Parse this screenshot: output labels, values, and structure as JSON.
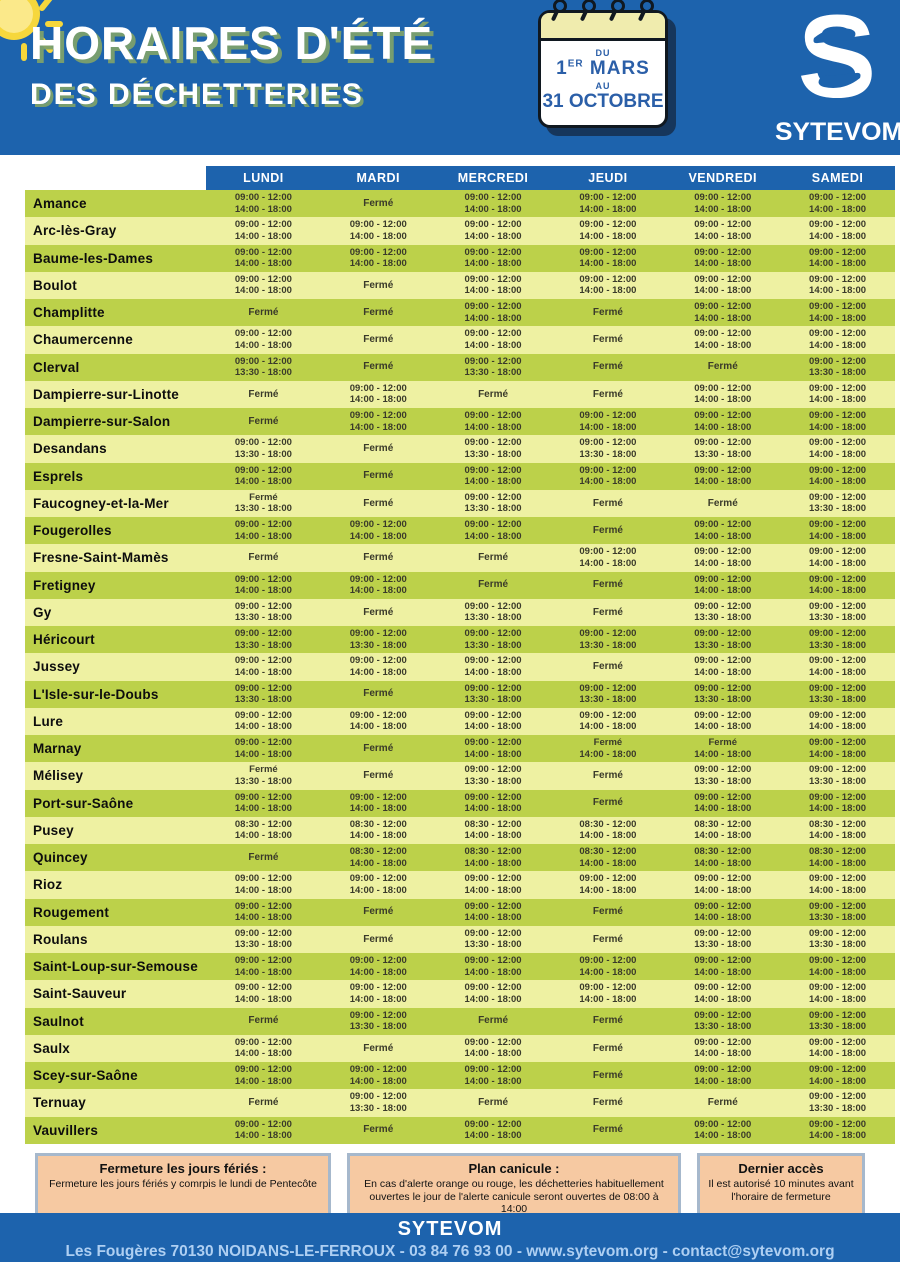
{
  "theme": {
    "blue": "#1d63ad",
    "navy_shadow": "#16365c",
    "row_dark_green": "#bcd14a",
    "row_light_yellow": "#eef1a2",
    "title_shadow_olive": "#7ca06c",
    "calendar_yellow": "#f0ecae",
    "info_box_peach": "#f6c9a2",
    "info_box_border": "#a6b8cc",
    "footer_address_blue": "#aecff2"
  },
  "header": {
    "title_line1": "HORAIRES D'ÉTÉ",
    "title_line2": "DES DÉCHETTERIES",
    "calendar": {
      "du": "DU",
      "day": "1",
      "day_suffix": "ER",
      "month": "MARS",
      "au": "AU",
      "date2": "31 OCTOBRE"
    },
    "logo": {
      "letter": "S",
      "name": "SYTEVOM"
    }
  },
  "table": {
    "day_headers": [
      "LUNDI",
      "MARDI",
      "MERCREDI",
      "JEUDI",
      "VENDREDI",
      "SAMEDI"
    ],
    "closed_label": "Fermé",
    "rows": [
      {
        "name": "Amance",
        "days": [
          [
            "09:00 - 12:00",
            "14:00 - 18:00"
          ],
          [
            "Fermé"
          ],
          [
            "09:00 - 12:00",
            "14:00 - 18:00"
          ],
          [
            "09:00 - 12:00",
            "14:00 - 18:00"
          ],
          [
            "09:00 - 12:00",
            "14:00 - 18:00"
          ],
          [
            "09:00 - 12:00",
            "14:00 - 18:00"
          ]
        ]
      },
      {
        "name": "Arc-lès-Gray",
        "days": [
          [
            "09:00 - 12:00",
            "14:00 - 18:00"
          ],
          [
            "09:00 - 12:00",
            "14:00 - 18:00"
          ],
          [
            "09:00 - 12:00",
            "14:00 - 18:00"
          ],
          [
            "09:00 - 12:00",
            "14:00 - 18:00"
          ],
          [
            "09:00 - 12:00",
            "14:00 - 18:00"
          ],
          [
            "09:00 - 12:00",
            "14:00 - 18:00"
          ]
        ]
      },
      {
        "name": "Baume-les-Dames",
        "days": [
          [
            "09:00 - 12:00",
            "14:00 - 18:00"
          ],
          [
            "09:00 - 12:00",
            "14:00 - 18:00"
          ],
          [
            "09:00 - 12:00",
            "14:00 - 18:00"
          ],
          [
            "09:00 - 12:00",
            "14:00 - 18:00"
          ],
          [
            "09:00 - 12:00",
            "14:00 - 18:00"
          ],
          [
            "09:00 - 12:00",
            "14:00 - 18:00"
          ]
        ]
      },
      {
        "name": "Boulot",
        "days": [
          [
            "09:00 - 12:00",
            "14:00 - 18:00"
          ],
          [
            "Fermé"
          ],
          [
            "09:00 - 12:00",
            "14:00 - 18:00"
          ],
          [
            "09:00 - 12:00",
            "14:00 - 18:00"
          ],
          [
            "09:00 - 12:00",
            "14:00 - 18:00"
          ],
          [
            "09:00 - 12:00",
            "14:00 - 18:00"
          ]
        ]
      },
      {
        "name": "Champlitte",
        "days": [
          [
            "Fermé"
          ],
          [
            "Fermé"
          ],
          [
            "09:00 - 12:00",
            "14:00 - 18:00"
          ],
          [
            "Fermé"
          ],
          [
            "09:00 - 12:00",
            "14:00 - 18:00"
          ],
          [
            "09:00 - 12:00",
            "14:00 - 18:00"
          ]
        ]
      },
      {
        "name": "Chaumercenne",
        "days": [
          [
            "09:00 - 12:00",
            "14:00 - 18:00"
          ],
          [
            "Fermé"
          ],
          [
            "09:00 - 12:00",
            "14:00 - 18:00"
          ],
          [
            "Fermé"
          ],
          [
            "09:00 - 12:00",
            "14:00 - 18:00"
          ],
          [
            "09:00 - 12:00",
            "14:00 - 18:00"
          ]
        ]
      },
      {
        "name": "Clerval",
        "days": [
          [
            "09:00 - 12:00",
            "13:30 - 18:00"
          ],
          [
            "Fermé"
          ],
          [
            "09:00 - 12:00",
            "13:30 - 18:00"
          ],
          [
            "Fermé"
          ],
          [
            "Fermé"
          ],
          [
            "09:00 - 12:00",
            "13:30 - 18:00"
          ]
        ]
      },
      {
        "name": "Dampierre-sur-Linotte",
        "days": [
          [
            "Fermé"
          ],
          [
            "09:00 - 12:00",
            "14:00 - 18:00"
          ],
          [
            "Fermé"
          ],
          [
            "Fermé"
          ],
          [
            "09:00 - 12:00",
            "14:00 - 18:00"
          ],
          [
            "09:00 - 12:00",
            "14:00 - 18:00"
          ]
        ]
      },
      {
        "name": "Dampierre-sur-Salon",
        "days": [
          [
            "Fermé"
          ],
          [
            "09:00 - 12:00",
            "14:00 - 18:00"
          ],
          [
            "09:00 - 12:00",
            "14:00 - 18:00"
          ],
          [
            "09:00 - 12:00",
            "14:00 - 18:00"
          ],
          [
            "09:00 - 12:00",
            "14:00 - 18:00"
          ],
          [
            "09:00 - 12:00",
            "14:00 - 18:00"
          ]
        ]
      },
      {
        "name": "Desandans",
        "days": [
          [
            "09:00 - 12:00",
            "13:30 - 18:00"
          ],
          [
            "Fermé"
          ],
          [
            "09:00 - 12:00",
            "13:30 - 18:00"
          ],
          [
            "09:00 - 12:00",
            "13:30 - 18:00"
          ],
          [
            "09:00 - 12:00",
            "13:30 - 18:00"
          ],
          [
            "09:00 - 12:00",
            "14:00 - 18:00"
          ]
        ]
      },
      {
        "name": "Esprels",
        "days": [
          [
            "09:00 - 12:00",
            "14:00 - 18:00"
          ],
          [
            "Fermé"
          ],
          [
            "09:00 - 12:00",
            "14:00 - 18:00"
          ],
          [
            "09:00 - 12:00",
            "14:00 - 18:00"
          ],
          [
            "09:00 - 12:00",
            "14:00 - 18:00"
          ],
          [
            "09:00 - 12:00",
            "14:00 - 18:00"
          ]
        ]
      },
      {
        "name": "Faucogney-et-la-Mer",
        "days": [
          [
            "Fermé",
            "13:30 - 18:00"
          ],
          [
            "Fermé"
          ],
          [
            "09:00 - 12:00",
            "13:30 - 18:00"
          ],
          [
            "Fermé"
          ],
          [
            "Fermé"
          ],
          [
            "09:00 - 12:00",
            "13:30 - 18:00"
          ]
        ]
      },
      {
        "name": "Fougerolles",
        "days": [
          [
            "09:00 - 12:00",
            "14:00 - 18:00"
          ],
          [
            "09:00 - 12:00",
            "14:00 - 18:00"
          ],
          [
            "09:00 - 12:00",
            "14:00 - 18:00"
          ],
          [
            "Fermé"
          ],
          [
            "09:00 - 12:00",
            "14:00 - 18:00"
          ],
          [
            "09:00 - 12:00",
            "14:00 - 18:00"
          ]
        ]
      },
      {
        "name": "Fresne-Saint-Mamès",
        "days": [
          [
            "Fermé"
          ],
          [
            "Fermé"
          ],
          [
            "Fermé"
          ],
          [
            "09:00 - 12:00",
            "14:00 - 18:00"
          ],
          [
            "09:00 - 12:00",
            "14:00 - 18:00"
          ],
          [
            "09:00 - 12:00",
            "14:00 - 18:00"
          ]
        ]
      },
      {
        "name": "Fretigney",
        "days": [
          [
            "09:00 - 12:00",
            "14:00 - 18:00"
          ],
          [
            "09:00 - 12:00",
            "14:00 - 18:00"
          ],
          [
            "Fermé"
          ],
          [
            "Fermé"
          ],
          [
            "09:00 - 12:00",
            "14:00 - 18:00"
          ],
          [
            "09:00 - 12:00",
            "14:00 - 18:00"
          ]
        ]
      },
      {
        "name": "Gy",
        "days": [
          [
            "09:00 - 12:00",
            "13:30 - 18:00"
          ],
          [
            "Fermé"
          ],
          [
            "09:00 - 12:00",
            "13:30 - 18:00"
          ],
          [
            "Fermé"
          ],
          [
            "09:00 - 12:00",
            "13:30 - 18:00"
          ],
          [
            "09:00 - 12:00",
            "13:30 - 18:00"
          ]
        ]
      },
      {
        "name": "Héricourt",
        "days": [
          [
            "09:00 - 12:00",
            "13:30 - 18:00"
          ],
          [
            "09:00 - 12:00",
            "13:30 - 18:00"
          ],
          [
            "09:00 - 12:00",
            "13:30 - 18:00"
          ],
          [
            "09:00 - 12:00",
            "13:30 - 18:00"
          ],
          [
            "09:00 - 12:00",
            "13:30 - 18:00"
          ],
          [
            "09:00 - 12:00",
            "13:30 - 18:00"
          ]
        ]
      },
      {
        "name": "Jussey",
        "days": [
          [
            "09:00 - 12:00",
            "14:00 - 18:00"
          ],
          [
            "09:00 - 12:00",
            "14:00 - 18:00"
          ],
          [
            "09:00 - 12:00",
            "14:00 - 18:00"
          ],
          [
            "Fermé"
          ],
          [
            "09:00 - 12:00",
            "14:00 - 18:00"
          ],
          [
            "09:00 - 12:00",
            "14:00 - 18:00"
          ]
        ]
      },
      {
        "name": "L'Isle-sur-le-Doubs",
        "days": [
          [
            "09:00 - 12:00",
            "13:30 - 18:00"
          ],
          [
            "Fermé"
          ],
          [
            "09:00 - 12:00",
            "13:30 - 18:00"
          ],
          [
            "09:00 - 12:00",
            "13:30 - 18:00"
          ],
          [
            "09:00 - 12:00",
            "13:30 - 18:00"
          ],
          [
            "09:00 - 12:00",
            "13:30 - 18:00"
          ]
        ]
      },
      {
        "name": "Lure",
        "days": [
          [
            "09:00 - 12:00",
            "14:00 - 18:00"
          ],
          [
            "09:00 - 12:00",
            "14:00 - 18:00"
          ],
          [
            "09:00 - 12:00",
            "14:00 - 18:00"
          ],
          [
            "09:00 - 12:00",
            "14:00 - 18:00"
          ],
          [
            "09:00 - 12:00",
            "14:00 - 18:00"
          ],
          [
            "09:00 - 12:00",
            "14:00 - 18:00"
          ]
        ]
      },
      {
        "name": "Marnay",
        "days": [
          [
            "09:00 - 12:00",
            "14:00 - 18:00"
          ],
          [
            "Fermé"
          ],
          [
            "09:00 - 12:00",
            "14:00 - 18:00"
          ],
          [
            "Fermé",
            "14:00 - 18:00"
          ],
          [
            "Fermé",
            "14:00 - 18:00"
          ],
          [
            "09:00 - 12:00",
            "14:00 - 18:00"
          ]
        ]
      },
      {
        "name": "Mélisey",
        "days": [
          [
            "Fermé",
            "13:30 - 18:00"
          ],
          [
            "Fermé"
          ],
          [
            "09:00 - 12:00",
            "13:30 - 18:00"
          ],
          [
            "Fermé"
          ],
          [
            "09:00 - 12:00",
            "13:30 - 18:00"
          ],
          [
            "09:00 - 12:00",
            "13:30 - 18:00"
          ]
        ]
      },
      {
        "name": "Port-sur-Saône",
        "days": [
          [
            "09:00 - 12:00",
            "14:00 - 18:00"
          ],
          [
            "09:00 - 12:00",
            "14:00 - 18:00"
          ],
          [
            "09:00 - 12:00",
            "14:00 - 18:00"
          ],
          [
            "Fermé"
          ],
          [
            "09:00 - 12:00",
            "14:00 - 18:00"
          ],
          [
            "09:00 - 12:00",
            "14:00 - 18:00"
          ]
        ]
      },
      {
        "name": "Pusey",
        "days": [
          [
            "08:30 - 12:00",
            "14:00 - 18:00"
          ],
          [
            "08:30 - 12:00",
            "14:00 - 18:00"
          ],
          [
            "08:30 - 12:00",
            "14:00 - 18:00"
          ],
          [
            "08:30 - 12:00",
            "14:00 - 18:00"
          ],
          [
            "08:30 - 12:00",
            "14:00 - 18:00"
          ],
          [
            "08:30 - 12:00",
            "14:00 - 18:00"
          ]
        ]
      },
      {
        "name": "Quincey",
        "days": [
          [
            "Fermé"
          ],
          [
            "08:30 - 12:00",
            "14:00 - 18:00"
          ],
          [
            "08:30 - 12:00",
            "14:00 - 18:00"
          ],
          [
            "08:30 - 12:00",
            "14:00 - 18:00"
          ],
          [
            "08:30 - 12:00",
            "14:00 - 18:00"
          ],
          [
            "08:30 - 12:00",
            "14:00 - 18:00"
          ]
        ]
      },
      {
        "name": "Rioz",
        "days": [
          [
            "09:00 - 12:00",
            "14:00 - 18:00"
          ],
          [
            "09:00 - 12:00",
            "14:00 - 18:00"
          ],
          [
            "09:00 - 12:00",
            "14:00 - 18:00"
          ],
          [
            "09:00 - 12:00",
            "14:00 - 18:00"
          ],
          [
            "09:00 - 12:00",
            "14:00 - 18:00"
          ],
          [
            "09:00 - 12:00",
            "14:00 - 18:00"
          ]
        ]
      },
      {
        "name": "Rougement",
        "days": [
          [
            "09:00 - 12:00",
            "14:00 - 18:00"
          ],
          [
            "Fermé"
          ],
          [
            "09:00 - 12:00",
            "14:00 - 18:00"
          ],
          [
            "Fermé"
          ],
          [
            "09:00 - 12:00",
            "14:00 - 18:00"
          ],
          [
            "09:00 - 12:00",
            "13:30 - 18:00"
          ]
        ]
      },
      {
        "name": "Roulans",
        "days": [
          [
            "09:00 - 12:00",
            "13:30 - 18:00"
          ],
          [
            "Fermé"
          ],
          [
            "09:00 - 12:00",
            "13:30 - 18:00"
          ],
          [
            "Fermé"
          ],
          [
            "09:00 - 12:00",
            "13:30 - 18:00"
          ],
          [
            "09:00 - 12:00",
            "13:30 - 18:00"
          ]
        ]
      },
      {
        "name": "Saint-Loup-sur-Semouse",
        "days": [
          [
            "09:00 - 12:00",
            "14:00 - 18:00"
          ],
          [
            "09:00 - 12:00",
            "14:00 - 18:00"
          ],
          [
            "09:00 - 12:00",
            "14:00 - 18:00"
          ],
          [
            "09:00 - 12:00",
            "14:00 - 18:00"
          ],
          [
            "09:00 - 12:00",
            "14:00 - 18:00"
          ],
          [
            "09:00 - 12:00",
            "14:00 - 18:00"
          ]
        ]
      },
      {
        "name": "Saint-Sauveur",
        "days": [
          [
            "09:00 - 12:00",
            "14:00 - 18:00"
          ],
          [
            "09:00 - 12:00",
            "14:00 - 18:00"
          ],
          [
            "09:00 - 12:00",
            "14:00 - 18:00"
          ],
          [
            "09:00 - 12:00",
            "14:00 - 18:00"
          ],
          [
            "09:00 - 12:00",
            "14:00 - 18:00"
          ],
          [
            "09:00 - 12:00",
            "14:00 - 18:00"
          ]
        ]
      },
      {
        "name": "Saulnot",
        "days": [
          [
            "Fermé"
          ],
          [
            "09:00 - 12:00",
            "13:30 - 18:00"
          ],
          [
            "Fermé"
          ],
          [
            "Fermé"
          ],
          [
            "09:00 - 12:00",
            "13:30 - 18:00"
          ],
          [
            "09:00 - 12:00",
            "13:30 - 18:00"
          ]
        ]
      },
      {
        "name": "Saulx",
        "days": [
          [
            "09:00 - 12:00",
            "14:00 - 18:00"
          ],
          [
            "Fermé"
          ],
          [
            "09:00 - 12:00",
            "14:00 - 18:00"
          ],
          [
            "Fermé"
          ],
          [
            "09:00 - 12:00",
            "14:00 - 18:00"
          ],
          [
            "09:00 - 12:00",
            "14:00 - 18:00"
          ]
        ]
      },
      {
        "name": "Scey-sur-Saône",
        "days": [
          [
            "09:00 - 12:00",
            "14:00 - 18:00"
          ],
          [
            "09:00 - 12:00",
            "14:00 - 18:00"
          ],
          [
            "09:00 - 12:00",
            "14:00 - 18:00"
          ],
          [
            "Fermé"
          ],
          [
            "09:00 - 12:00",
            "14:00 - 18:00"
          ],
          [
            "09:00 - 12:00",
            "14:00 - 18:00"
          ]
        ]
      },
      {
        "name": "Ternuay",
        "days": [
          [
            "Fermé"
          ],
          [
            "09:00 - 12:00",
            "13:30 - 18:00"
          ],
          [
            "Fermé"
          ],
          [
            "Fermé"
          ],
          [
            "Fermé"
          ],
          [
            "09:00 - 12:00",
            "13:30 - 18:00"
          ]
        ]
      },
      {
        "name": "Vauvillers",
        "days": [
          [
            "09:00 - 12:00",
            "14:00 - 18:00"
          ],
          [
            "Fermé"
          ],
          [
            "09:00 - 12:00",
            "14:00 - 18:00"
          ],
          [
            "Fermé"
          ],
          [
            "09:00 - 12:00",
            "14:00 - 18:00"
          ],
          [
            "09:00 - 12:00",
            "14:00 - 18:00"
          ]
        ]
      }
    ]
  },
  "info_boxes": [
    {
      "title": "Fermeture les jours fériés :",
      "body": "Fermeture les jours fériés y comrpis le lundi de Pentecôte"
    },
    {
      "title": "Plan canicule :",
      "body": "En cas d'alerte orange ou rouge, les déchetteries habituellement ouvertes le jour de l'alerte canicule seront ouvertes de 08:00 à 14:00"
    },
    {
      "title": "Dernier accès",
      "body": "Il est autorisé 10 minutes avant l'horaire de fermeture"
    }
  ],
  "footer": {
    "name": "SYTEVOM",
    "address": "Les Fougères 70130 NOIDANS-LE-FERROUX - 03 84 76 93 00 - www.sytevom.org - contact@sytevom.org"
  }
}
